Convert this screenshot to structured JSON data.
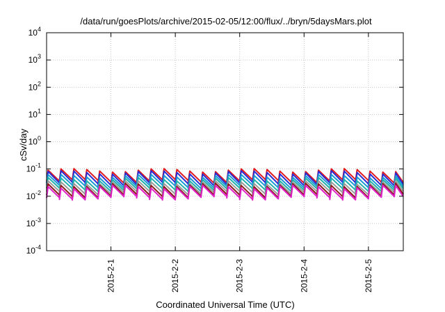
{
  "chart_data": {
    "type": "line",
    "title": "/data/run/goesPlots/archive/2015-02-05/12:00/flux/../bryn/5daysMars.plot",
    "xlabel": "Coordinated Universal Time (UTC)",
    "ylabel": "cSv/day",
    "yscale": "log",
    "ylim": [
      0.0001,
      10000
    ],
    "y_ticks": [
      {
        "base": "10",
        "exp": "-4",
        "value": 0.0001
      },
      {
        "base": "10",
        "exp": "-3",
        "value": 0.001
      },
      {
        "base": "10",
        "exp": "-2",
        "value": 0.01
      },
      {
        "base": "10",
        "exp": "-1",
        "value": 0.1
      },
      {
        "base": "10",
        "exp": "0",
        "value": 1
      },
      {
        "base": "10",
        "exp": "1",
        "value": 10
      },
      {
        "base": "10",
        "exp": "2",
        "value": 100
      },
      {
        "base": "10",
        "exp": "3",
        "value": 1000
      },
      {
        "base": "10",
        "exp": "4",
        "value": 10000
      }
    ],
    "xlim": [
      "2015-01-31T00:00",
      "2015-02-05T13:00"
    ],
    "x_ticks": [
      {
        "label": "2015-2-1",
        "date": "2015-02-01T00:00"
      },
      {
        "label": "2015-2-2",
        "date": "2015-02-02T00:00"
      },
      {
        "label": "2015-2-3",
        "date": "2015-02-03T00:00"
      },
      {
        "label": "2015-2-4",
        "date": "2015-02-04T00:00"
      },
      {
        "label": "2015-2-5",
        "date": "2015-02-05T00:00"
      }
    ],
    "grid": true,
    "cycle_period_hours": 4.8,
    "series": [
      {
        "color": "#e0191e",
        "peak": 0.09,
        "trough": 0.035
      },
      {
        "color": "#2a2ad4",
        "peak": 0.075,
        "trough": 0.028
      },
      {
        "color": "#1a9ad6",
        "peak": 0.055,
        "trough": 0.022
      },
      {
        "color": "#20b2aa",
        "peak": 0.042,
        "trough": 0.017
      },
      {
        "color": "#9a9a9a",
        "peak": 0.032,
        "trough": 0.013
      },
      {
        "color": "#8b1a1a",
        "peak": 0.026,
        "trough": 0.01
      },
      {
        "color": "#e020c8",
        "peak": 0.022,
        "trough": 0.0085
      }
    ]
  }
}
